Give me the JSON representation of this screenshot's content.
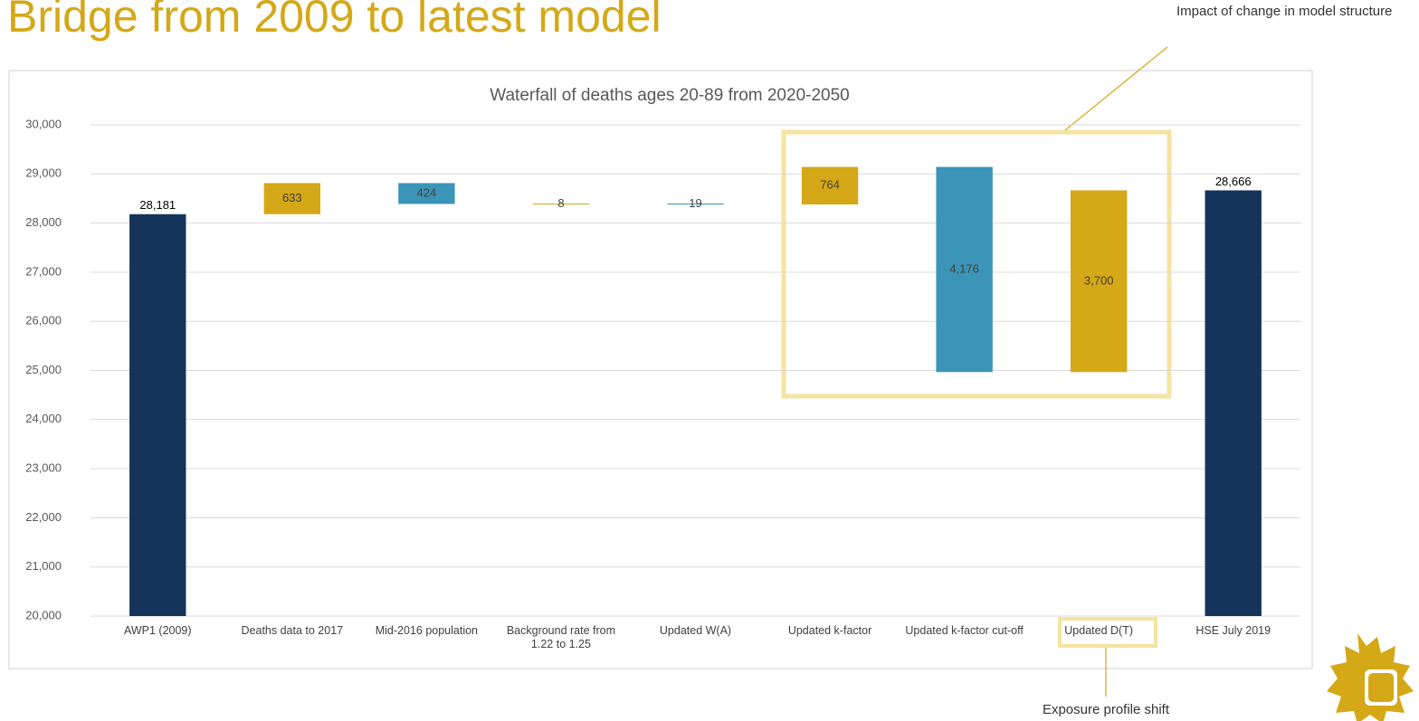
{
  "slide": {
    "title": "Bridge from 2009 to latest model",
    "annotations": [
      "Impact of change in model structure",
      "Exposure profile shift"
    ]
  },
  "chart_data": {
    "type": "waterfall",
    "title": "Waterfall of deaths ages 20-89 from 2020-2050",
    "categories": [
      "AWP1 (2009)",
      "Deaths data to 2017",
      "Mid-2016 population",
      "Background rate from 1.22 to 1.25",
      "Updated W(A)",
      "Updated k-factor",
      "Updated k-factor cut-off",
      "Updated D(T)",
      "HSE July 2019"
    ],
    "values": [
      28181,
      633,
      424,
      8,
      19,
      764,
      4176,
      3700,
      28666
    ],
    "value_labels": [
      "28,181",
      "633",
      "424",
      "8",
      "19",
      "764",
      "4,176",
      "3,700",
      "28,666"
    ],
    "kinds": [
      "total",
      "increase",
      "decrease",
      "increase",
      "decrease",
      "increase",
      "decrease",
      "increase",
      "total"
    ],
    "colors": {
      "total": "#14345a",
      "increase": "#d4a817",
      "decrease": "#3b95b8"
    },
    "ylim": [
      20000,
      30000
    ],
    "yticks": [
      {
        "value": 20000,
        "label": "20,000"
      },
      {
        "value": 21000,
        "label": "21,000"
      },
      {
        "value": 22000,
        "label": "22,000"
      },
      {
        "value": 23000,
        "label": "23,000"
      },
      {
        "value": 24000,
        "label": "24,000"
      },
      {
        "value": 25000,
        "label": "25,000"
      },
      {
        "value": 26000,
        "label": "26,000"
      },
      {
        "value": 27000,
        "label": "27,000"
      },
      {
        "value": 28000,
        "label": "28,000"
      },
      {
        "value": 29000,
        "label": "29,000"
      },
      {
        "value": 30000,
        "label": "30,000"
      }
    ],
    "grid": true
  }
}
